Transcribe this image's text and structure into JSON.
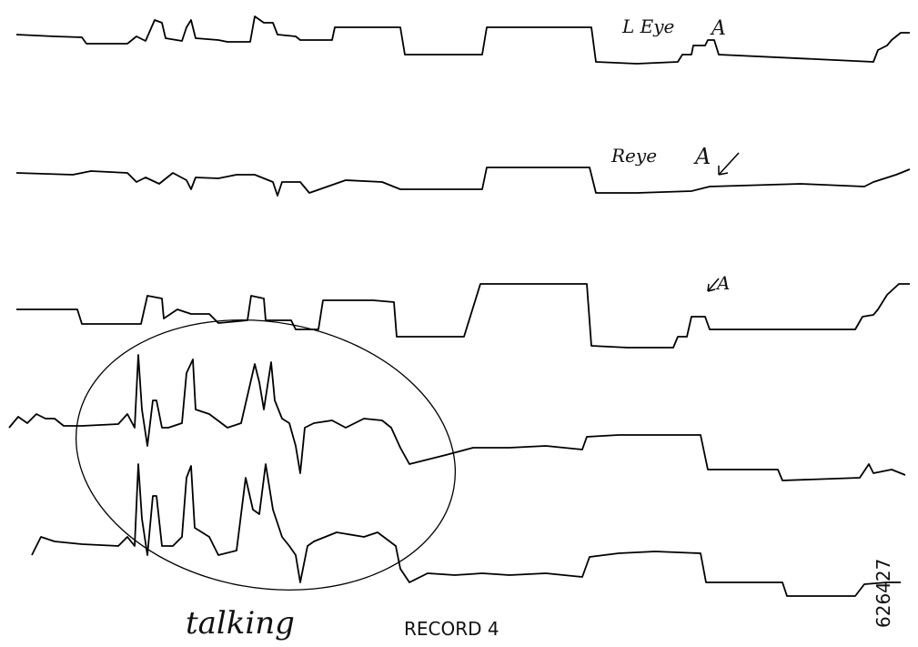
{
  "annotations": {
    "left_eye": "L Eye",
    "left_eye_mark": "A",
    "right_eye": "Reye",
    "right_eye_mark": "A",
    "third_mark": "A",
    "circled": "talking"
  },
  "caption": "RECORD 4",
  "code": "626427"
}
